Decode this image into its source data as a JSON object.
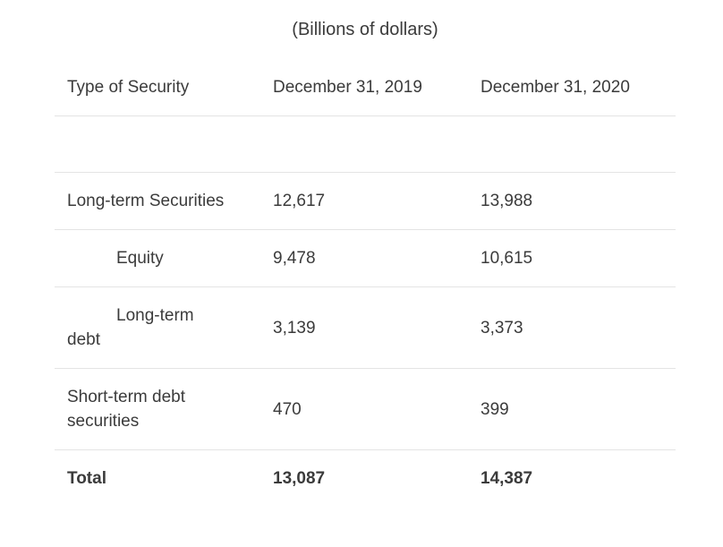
{
  "table": {
    "title": "(Billions of dollars)",
    "columns": [
      "Type of Security",
      "December 31, 2019",
      "December 31, 2020"
    ],
    "rows": [
      {
        "label": "",
        "y2019": "",
        "y2020": ""
      },
      {
        "label": "Long-term Securities",
        "y2019": "12,617",
        "y2020": "13,988"
      },
      {
        "label": "Equity",
        "y2019": "9,478",
        "y2020": "10,615"
      },
      {
        "label": "Long-term\ndebt",
        "y2019": "3,139",
        "y2020": "3,373"
      },
      {
        "label": "Short-term debt\nsecurities",
        "y2019": "470",
        "y2020": "399"
      },
      {
        "label": "Total",
        "y2019": "13,087",
        "y2020": "14,387"
      }
    ],
    "colors": {
      "text": "#3b3b3b",
      "divider": "#e4e4e4",
      "background": "#ffffff"
    }
  },
  "chart_data": {
    "type": "table",
    "title": "(Billions of dollars)",
    "units": "Billions of dollars",
    "columns": [
      "Type of Security",
      "December 31, 2019",
      "December 31, 2020"
    ],
    "rows": [
      {
        "type_of_security": "Long-term Securities",
        "dec_31_2019": 12617,
        "dec_31_2020": 13988,
        "indent_level": 0
      },
      {
        "type_of_security": "Equity",
        "dec_31_2019": 9478,
        "dec_31_2020": 10615,
        "indent_level": 1
      },
      {
        "type_of_security": "Long-term debt",
        "dec_31_2019": 3139,
        "dec_31_2020": 3373,
        "indent_level": 1
      },
      {
        "type_of_security": "Short-term debt securities",
        "dec_31_2019": 470,
        "dec_31_2020": 399,
        "indent_level": 0
      },
      {
        "type_of_security": "Total",
        "dec_31_2019": 13087,
        "dec_31_2020": 14387,
        "indent_level": 0,
        "is_total": true
      }
    ]
  }
}
